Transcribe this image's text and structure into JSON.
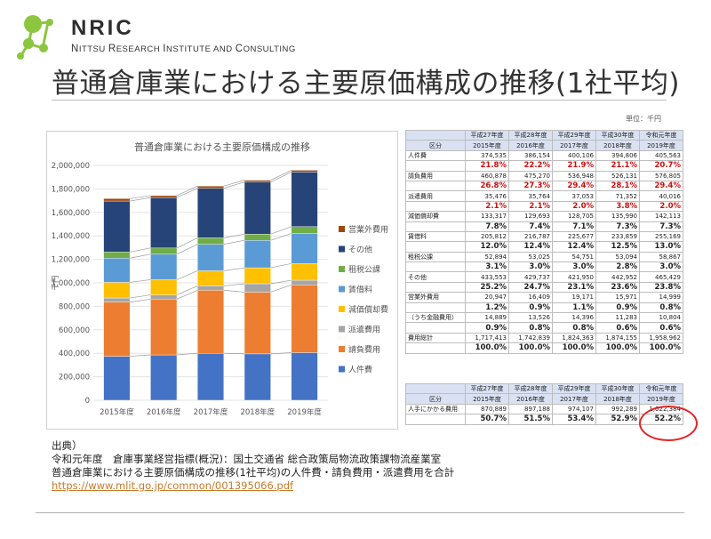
{
  "brand": {
    "name": "NRIC",
    "subtitle": [
      "N",
      "ITTSU ",
      "R",
      "ESEARCH ",
      "I",
      "NSTITUTE AND ",
      "C",
      "ONSULTING"
    ]
  },
  "page": {
    "title": "普通倉庫業における主要原価構成の推移(1社平均)",
    "unit": "単位：千円"
  },
  "colors": {
    "人件費": "#4472c4",
    "請負費用": "#ed7d31",
    "派遣費用": "#a5a5a5",
    "減価償却費": "#ffc000",
    "賃借料": "#5b9bd5",
    "租税公課": "#70ad47",
    "その他": "#264478",
    "営業外費用": "#9e480e",
    "accent_red": "#d10c0c",
    "header_bg": "#d9e1f2"
  },
  "chart_data": {
    "type": "bar",
    "stacked": true,
    "title": "普通倉庫業における主要原価構成の推移",
    "xlabel": "",
    "ylabel": "千円",
    "ylim": [
      0,
      2000000
    ],
    "yticks": [
      0,
      200000,
      400000,
      600000,
      800000,
      1000000,
      1200000,
      1400000,
      1600000,
      1800000,
      2000000
    ],
    "ytick_labels": [
      "0",
      "200,000",
      "400,000",
      "600,000",
      "800,000",
      "1,000,000",
      "1,200,000",
      "1,400,000",
      "1,600,000",
      "1,800,000",
      "2,000,000"
    ],
    "categories": [
      "2015年度",
      "2016年度",
      "2017年度",
      "2018年度",
      "2019年度"
    ],
    "series": [
      {
        "name": "人件費",
        "values": [
          374535,
          386154,
          400106,
          394806,
          405563
        ]
      },
      {
        "name": "請負費用",
        "values": [
          460878,
          475270,
          536948,
          526131,
          576805
        ]
      },
      {
        "name": "派遣費用",
        "values": [
          35476,
          35764,
          37053,
          71352,
          40016
        ]
      },
      {
        "name": "減価償却費",
        "values": [
          133317,
          129693,
          128705,
          135990,
          142113
        ]
      },
      {
        "name": "賃借料",
        "values": [
          205812,
          216787,
          225677,
          233859,
          255169
        ]
      },
      {
        "name": "租税公課",
        "values": [
          52894,
          53025,
          54751,
          53094,
          58867
        ]
      },
      {
        "name": "その他",
        "values": [
          433553,
          429737,
          421950,
          442952,
          465429
        ]
      },
      {
        "name": "営業外費用",
        "values": [
          20947,
          16409,
          19171,
          15971,
          14999
        ]
      }
    ],
    "legend_position": "right",
    "legend_order": [
      "営業外費用",
      "その他",
      "租税公課",
      "賃借料",
      "減価償却費",
      "派遣費用",
      "請負費用",
      "人件費"
    ],
    "grid": true
  },
  "table": {
    "header_label": "区分",
    "years_jp": [
      "平成27年度",
      "平成28年度",
      "平成29年度",
      "平成30年度",
      "令和元年度"
    ],
    "years": [
      "2015年度",
      "2016年度",
      "2017年度",
      "2018年度",
      "2019年度"
    ],
    "rows": [
      {
        "label": "人件費",
        "values": [
          "374,535",
          "386,154",
          "400,106",
          "394,806",
          "405,563"
        ],
        "pct": [
          "21.8%",
          "22.2%",
          "21.9%",
          "21.1%",
          "20.7%"
        ],
        "red": true
      },
      {
        "label": "請負費用",
        "values": [
          "460,878",
          "475,270",
          "536,948",
          "526,131",
          "576,805"
        ],
        "pct": [
          "26.8%",
          "27.3%",
          "29.4%",
          "28.1%",
          "29.4%"
        ],
        "red": true
      },
      {
        "label": "派遣費用",
        "values": [
          "35,476",
          "35,764",
          "37,053",
          "71,352",
          "40,016"
        ],
        "pct": [
          "2.1%",
          "2.1%",
          "2.0%",
          "3.8%",
          "2.0%"
        ],
        "red": true
      },
      {
        "label": "減価償却費",
        "values": [
          "133,317",
          "129,693",
          "128,705",
          "135,990",
          "142,113"
        ],
        "pct": [
          "7.8%",
          "7.4%",
          "7.1%",
          "7.3%",
          "7.3%"
        ],
        "red": false
      },
      {
        "label": "賃借料",
        "values": [
          "205,812",
          "216,787",
          "225,677",
          "233,859",
          "255,169"
        ],
        "pct": [
          "12.0%",
          "12.4%",
          "12.4%",
          "12.5%",
          "13.0%"
        ],
        "red": false
      },
      {
        "label": "租税公課",
        "values": [
          "52,894",
          "53,025",
          "54,751",
          "53,094",
          "58,867"
        ],
        "pct": [
          "3.1%",
          "3.0%",
          "3.0%",
          "2.8%",
          "3.0%"
        ],
        "red": false
      },
      {
        "label": "その他",
        "values": [
          "433,553",
          "429,737",
          "421,950",
          "442,952",
          "465,429"
        ],
        "pct": [
          "25.2%",
          "24.7%",
          "23.1%",
          "23.6%",
          "23.8%"
        ],
        "red": false
      },
      {
        "label": "営業外費用",
        "values": [
          "20,947",
          "16,409",
          "19,171",
          "15,971",
          "14,999"
        ],
        "pct": [
          "1.2%",
          "0.9%",
          "1.1%",
          "0.9%",
          "0.8%"
        ],
        "red": false
      },
      {
        "label": "（うち金融費用）",
        "values": [
          "14,889",
          "13,526",
          "14,396",
          "11,283",
          "10,804"
        ],
        "pct": [
          "0.9%",
          "0.8%",
          "0.8%",
          "0.6%",
          "0.6%"
        ],
        "red": false
      },
      {
        "label": "費用総計",
        "values": [
          "1,717,413",
          "1,742,839",
          "1,824,363",
          "1,874,155",
          "1,958,962"
        ],
        "pct": [
          "100.0%",
          "100.0%",
          "100.0%",
          "100.0%",
          "100.0%"
        ],
        "red": false
      }
    ]
  },
  "table2": {
    "header_label": "区分",
    "years_jp": [
      "平成27年度",
      "平成28年度",
      "平成29年度",
      "平成30年度",
      "令和元年度"
    ],
    "years": [
      "2015年度",
      "2016年度",
      "2017年度",
      "2018年度",
      "2019年度"
    ],
    "row": {
      "label": "人手にかかる費用",
      "values": [
        "870,889",
        "897,188",
        "974,107",
        "992,289",
        "1,022,384"
      ],
      "pct": [
        "50.7%",
        "51.5%",
        "53.4%",
        "52.9%",
        "52.2%"
      ]
    }
  },
  "source": {
    "heading": "出典）",
    "line1": "令和元年度　倉庫事業経営指標(概況)：国土交通省 総合政策局物流政策課物流産業室",
    "line2": "普通倉庫業における主要原価構成の推移(1社平均)の人件費・請負費用・派遣費用を合計",
    "url": "https://www.mlit.go.jp/common/001395066.pdf"
  }
}
